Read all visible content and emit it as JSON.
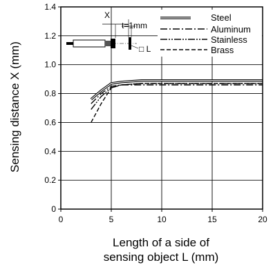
{
  "chart_data": {
    "type": "line",
    "title": "",
    "xlabel_line1": "Length of a side of",
    "xlabel_line2": "sensing object L (mm)",
    "ylabel": "Sensing distance X (mm)",
    "xlim": [
      0,
      20
    ],
    "ylim": [
      0,
      1.4
    ],
    "xticks": [
      0,
      5,
      10,
      15,
      20
    ],
    "yticks": [
      0,
      0.2,
      0.4,
      0.6,
      0.8,
      1.0,
      1.2,
      1.4
    ],
    "xtick_labels": [
      "0",
      "5",
      "10",
      "15",
      "20"
    ],
    "ytick_labels": [
      "0",
      "0.2",
      "0.4",
      "0.6",
      "0.8",
      "1.0",
      "1.2",
      "1.4"
    ],
    "grid": true,
    "legend_position": "top-right",
    "series": [
      {
        "name": "Steel",
        "style": "solid-double",
        "x": [
          3,
          4,
          5,
          6,
          8,
          10,
          15,
          20
        ],
        "y": [
          0.76,
          0.82,
          0.87,
          0.88,
          0.89,
          0.89,
          0.89,
          0.89
        ]
      },
      {
        "name": "Aluminum",
        "style": "dash-dot",
        "x": [
          3,
          4,
          5,
          6,
          8,
          10,
          15,
          20
        ],
        "y": [
          0.73,
          0.8,
          0.85,
          0.86,
          0.86,
          0.86,
          0.86,
          0.86
        ]
      },
      {
        "name": "Stainless",
        "style": "dash-dot-dot",
        "x": [
          3,
          4,
          5,
          6,
          8,
          10,
          15,
          20
        ],
        "y": [
          0.69,
          0.78,
          0.84,
          0.86,
          0.87,
          0.87,
          0.87,
          0.87
        ]
      },
      {
        "name": "Brass",
        "style": "dashed",
        "x": [
          3,
          4,
          5,
          6,
          8,
          10,
          15,
          20
        ],
        "y": [
          0.6,
          0.73,
          0.84,
          0.86,
          0.87,
          0.87,
          0.87,
          0.87
        ]
      }
    ],
    "inset": {
      "distance_label": "X",
      "thickness_label": "t=1mm",
      "size_label": "□ L"
    }
  }
}
